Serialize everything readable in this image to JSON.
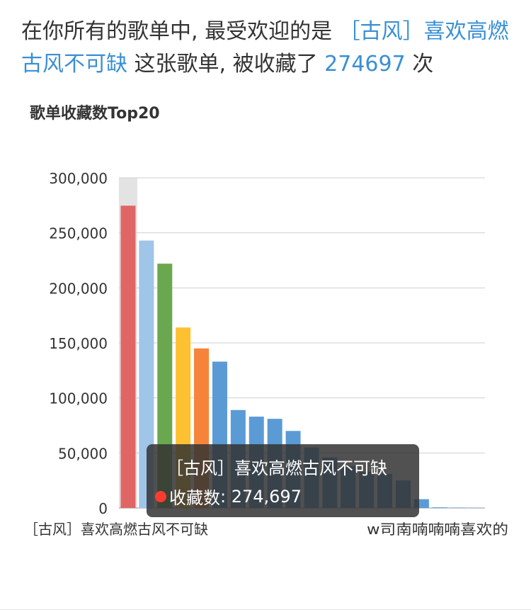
{
  "headline": {
    "prefix": "在你所有的歌单中, 最受欢迎的是 ",
    "playlist": "［古风］喜欢高燃古风不可缺",
    "middle": " 这张歌单, 被收藏了 ",
    "count": "274697",
    "suffix": " 次"
  },
  "tooltip": {
    "name": "［古风］喜欢高燃古风不可缺",
    "series_label": "收藏数",
    "value_text": "274,697"
  },
  "chart_data": {
    "type": "bar",
    "title": "歌单收藏数Top20",
    "ylim": [
      0,
      300000
    ],
    "yticks": [
      "0",
      "50,000",
      "100,000",
      "150,000",
      "200,000",
      "250,000",
      "300,000"
    ],
    "visible_xlabels": [
      "［古风］喜欢高燃古风不可缺",
      "w司南喃喃喃喜欢的"
    ],
    "values": [
      274697,
      243000,
      222000,
      164000,
      145000,
      133000,
      89000,
      83000,
      81000,
      70000,
      55000,
      46000,
      38000,
      33000,
      31000,
      25000,
      8000,
      600,
      400,
      200
    ],
    "colors": [
      "#e06666",
      "#9fc5e8",
      "#6aa84f",
      "#ffc031",
      "#f6843b",
      "#5b9bd5",
      "#5b9bd5",
      "#5b9bd5",
      "#5b9bd5",
      "#5b9bd5",
      "#5b9bd5",
      "#5b9bd5",
      "#5b9bd5",
      "#5b9bd5",
      "#5b9bd5",
      "#5b9bd5",
      "#5b9bd5",
      "#5b9bd5",
      "#5b9bd5",
      "#5b9bd5"
    ],
    "grid": true,
    "highlighted_index": 0
  }
}
